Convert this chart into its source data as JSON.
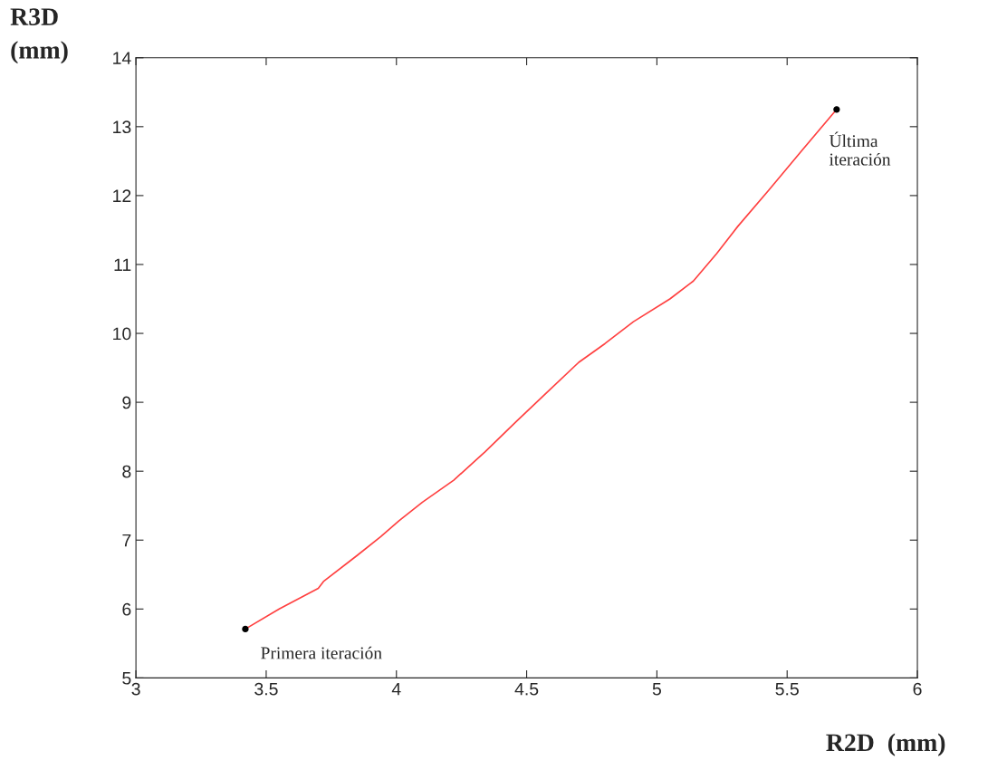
{
  "chart_data": {
    "type": "line",
    "xlabel": "R2D  (mm)",
    "ylabel": "R3D\n(mm)",
    "series": [
      {
        "color": "#ff4040",
        "x": [
          3.42,
          3.55,
          3.7,
          3.72,
          3.85,
          3.94,
          4.01,
          4.1,
          4.22,
          4.34,
          4.46,
          4.58,
          4.7,
          4.8,
          4.91,
          5.05,
          5.14,
          5.23,
          5.31,
          5.43,
          5.56,
          5.69
        ],
        "values": [
          5.71,
          6.0,
          6.3,
          6.4,
          6.78,
          7.05,
          7.28,
          7.55,
          7.87,
          8.28,
          8.72,
          9.15,
          9.58,
          9.85,
          10.17,
          10.5,
          10.76,
          11.16,
          11.55,
          12.08,
          12.67,
          13.25
        ]
      },
      {
        "type": "scatter",
        "color": "#000000",
        "marker": "circle",
        "x": [
          3.42,
          5.69
        ],
        "values": [
          5.71,
          13.25
        ]
      }
    ],
    "annotations": [
      {
        "text": "Primera iteración",
        "x": 3.42,
        "y": 5.71
      },
      {
        "text": "Última\niteración",
        "x": 5.69,
        "y": 13.25
      }
    ],
    "xlim": [
      3,
      6
    ],
    "xticks": [
      3,
      3.5,
      4,
      4.5,
      5,
      5.5,
      6
    ],
    "ylim": [
      5,
      14
    ],
    "yticks": [
      5,
      6,
      7,
      8,
      9,
      10,
      11,
      12,
      13,
      14
    ],
    "grid": false,
    "legend": false
  }
}
